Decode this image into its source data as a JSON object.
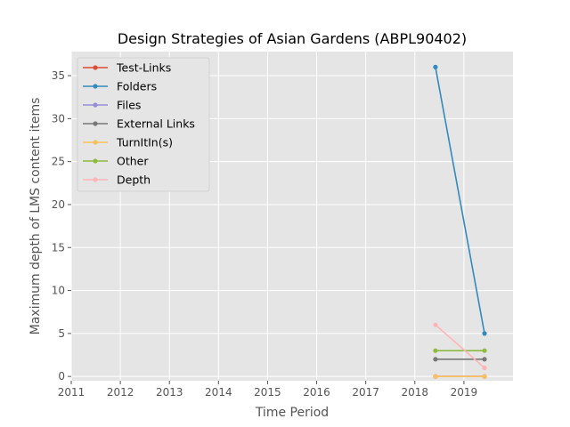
{
  "chart_data": {
    "type": "line",
    "title": "Design Strategies of Asian Gardens (ABPL90402)",
    "xlabel": "Time Period",
    "ylabel": "Maximum depth of LMS content items",
    "xlim": [
      2011.0,
      2020.0
    ],
    "ylim": [
      -0.5,
      37.8
    ],
    "x_ticks": [
      2011,
      2012,
      2013,
      2014,
      2015,
      2016,
      2017,
      2018,
      2019
    ],
    "y_ticks": [
      0,
      5,
      10,
      15,
      20,
      25,
      30,
      35
    ],
    "grid": true,
    "legend_position": "top-left",
    "x": [
      2018.42,
      2019.42
    ],
    "series": [
      {
        "name": "Test-Links",
        "color": "#E24A33",
        "values": [
          0,
          0
        ]
      },
      {
        "name": "Folders",
        "color": "#348ABD",
        "values": [
          36,
          5
        ]
      },
      {
        "name": "Files",
        "color": "#988ED5",
        "values": [
          0,
          0
        ]
      },
      {
        "name": "External Links",
        "color": "#777777",
        "values": [
          2,
          2
        ]
      },
      {
        "name": "TurnItIn(s)",
        "color": "#FBC15E",
        "values": [
          0,
          0
        ]
      },
      {
        "name": "Other",
        "color": "#8EBA42",
        "values": [
          3,
          3
        ]
      },
      {
        "name": "Depth",
        "color": "#FFB5B8",
        "values": [
          6,
          1
        ]
      }
    ]
  }
}
